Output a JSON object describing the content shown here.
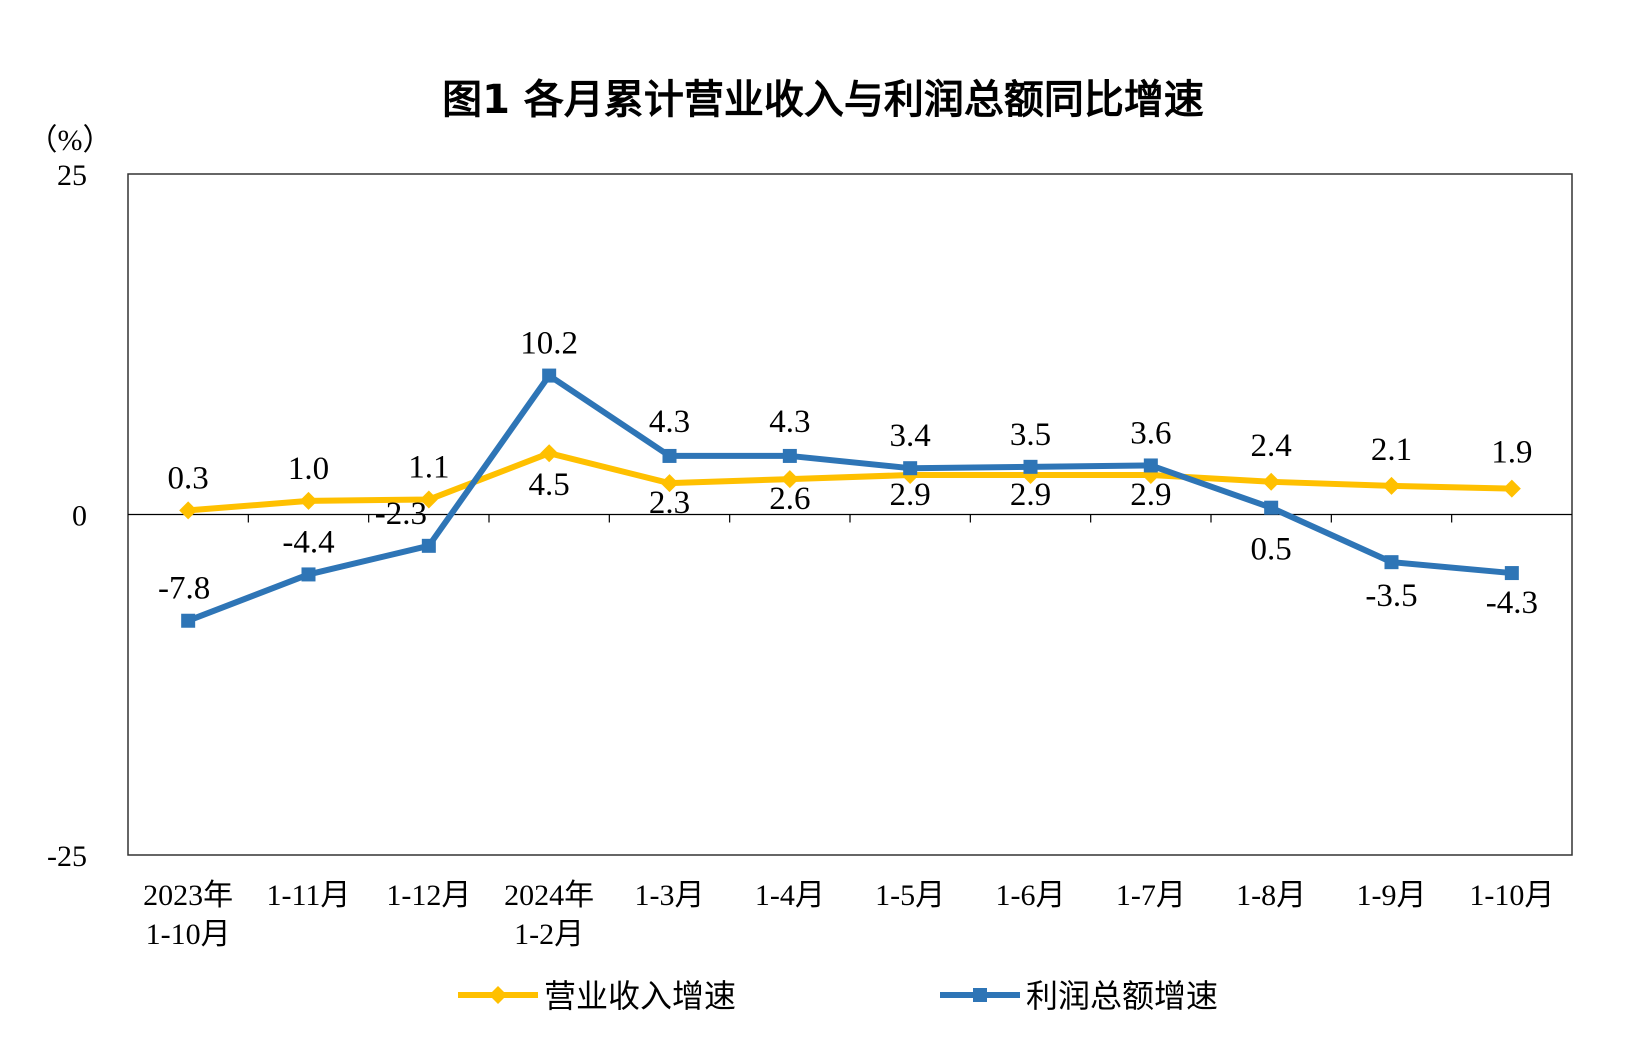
{
  "chart_data": {
    "type": "line",
    "title": "图1  各月累计营业收入与利润总额同比增速",
    "ylabel": "（%）",
    "ylim": [
      -25,
      25
    ],
    "yticks": [
      "25",
      "0",
      "-25"
    ],
    "grid": false,
    "legend_position": "bottom",
    "categories": [
      [
        "2023年",
        "1-10月"
      ],
      [
        "1-11月"
      ],
      [
        "1-12月"
      ],
      [
        "2024年",
        "1-2月"
      ],
      [
        "1-3月"
      ],
      [
        "1-4月"
      ],
      [
        "1-5月"
      ],
      [
        "1-6月"
      ],
      [
        "1-7月"
      ],
      [
        "1-8月"
      ],
      [
        "1-9月"
      ],
      [
        "1-10月"
      ]
    ],
    "series": [
      {
        "name": "营业收入增速",
        "color": "#FFC000",
        "marker": "diamond",
        "values": [
          0.3,
          1.0,
          1.1,
          4.5,
          2.3,
          2.6,
          2.9,
          2.9,
          2.9,
          2.4,
          2.1,
          1.9
        ],
        "labels": [
          "0.3",
          "1.0",
          "1.1",
          "4.5",
          "2.3",
          "2.6",
          "2.9",
          "2.9",
          "2.9",
          "2.4",
          "2.1",
          "1.9"
        ]
      },
      {
        "name": "利润总额增速",
        "color": "#2E75B6",
        "marker": "square",
        "values": [
          -7.8,
          -4.4,
          -2.3,
          10.2,
          4.3,
          4.3,
          3.4,
          3.5,
          3.6,
          0.5,
          -3.5,
          -4.3
        ],
        "labels": [
          "-7.8",
          "-4.4",
          "-2.3",
          "10.2",
          "4.3",
          "4.3",
          "3.4",
          "3.5",
          "3.6",
          "0.5",
          "-3.5",
          "-4.3"
        ]
      }
    ]
  }
}
